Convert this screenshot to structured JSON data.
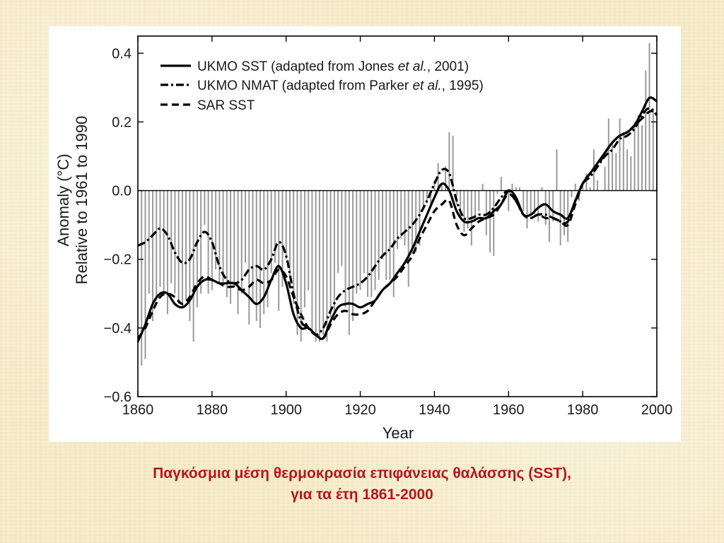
{
  "caption": {
    "line1": "Παγκόσμια μέση θερμοκρασία επιφάνειας θαλάσσης (SST),",
    "line2": "για τα έτη 1861-2000"
  },
  "chart_data": {
    "type": "bar",
    "xlabel": "Year",
    "ylabel_line1": "Anomaly (°C)",
    "ylabel_line2": "Relative to 1961 to 1990",
    "xlim": [
      1860,
      2000
    ],
    "ylim": [
      -0.6,
      0.45
    ],
    "xticks": [
      1860,
      1880,
      1900,
      1920,
      1940,
      1960,
      1980,
      2000
    ],
    "yticks": [
      0.4,
      0.2,
      0.0,
      -0.2,
      -0.4,
      -0.6
    ],
    "ytick_labels": [
      "0.4",
      "0.2",
      "0.0",
      "−0.2",
      "−0.4",
      "−0.6"
    ],
    "bar_color": "#9a9a9a",
    "line_color": "#000000",
    "legend": {
      "position": "top-left",
      "items": [
        {
          "style": "solid",
          "text_before": "UKMO SST (adapted from Jones ",
          "italic": "et al.",
          "text_after": ", 2001)"
        },
        {
          "style": "dashdot",
          "text_before": "UKMO NMAT (adapted from Parker ",
          "italic": "et al.",
          "text_after": ", 1995)"
        },
        {
          "style": "dashed",
          "text_before": "SAR SST",
          "italic": "",
          "text_after": ""
        }
      ]
    },
    "annual_bars": {
      "x": [
        1861,
        1862,
        1863,
        1864,
        1865,
        1866,
        1867,
        1868,
        1869,
        1870,
        1871,
        1872,
        1873,
        1874,
        1875,
        1876,
        1877,
        1878,
        1879,
        1880,
        1881,
        1882,
        1883,
        1884,
        1885,
        1886,
        1887,
        1888,
        1889,
        1890,
        1891,
        1892,
        1893,
        1894,
        1895,
        1896,
        1897,
        1898,
        1899,
        1900,
        1901,
        1902,
        1903,
        1904,
        1905,
        1906,
        1907,
        1908,
        1909,
        1910,
        1911,
        1912,
        1913,
        1914,
        1915,
        1916,
        1917,
        1918,
        1919,
        1920,
        1921,
        1922,
        1923,
        1924,
        1925,
        1926,
        1927,
        1928,
        1929,
        1930,
        1931,
        1932,
        1933,
        1934,
        1935,
        1936,
        1937,
        1938,
        1939,
        1940,
        1941,
        1942,
        1943,
        1944,
        1945,
        1946,
        1947,
        1948,
        1949,
        1950,
        1951,
        1952,
        1953,
        1954,
        1955,
        1956,
        1957,
        1958,
        1959,
        1960,
        1961,
        1962,
        1963,
        1964,
        1965,
        1966,
        1967,
        1968,
        1969,
        1970,
        1971,
        1972,
        1973,
        1974,
        1975,
        1976,
        1977,
        1978,
        1979,
        1980,
        1981,
        1982,
        1983,
        1984,
        1985,
        1986,
        1987,
        1988,
        1989,
        1990,
        1991,
        1992,
        1993,
        1994,
        1995,
        1996,
        1997,
        1998,
        1999,
        2000
      ],
      "values": [
        -0.51,
        -0.49,
        -0.3,
        -0.38,
        -0.32,
        -0.28,
        -0.3,
        -0.36,
        -0.27,
        -0.3,
        -0.33,
        -0.34,
        -0.32,
        -0.38,
        -0.44,
        -0.34,
        -0.3,
        -0.1,
        -0.3,
        -0.29,
        -0.23,
        -0.27,
        -0.28,
        -0.31,
        -0.33,
        -0.28,
        -0.36,
        -0.3,
        -0.21,
        -0.39,
        -0.32,
        -0.38,
        -0.4,
        -0.36,
        -0.34,
        -0.24,
        -0.21,
        -0.35,
        -0.28,
        -0.2,
        -0.25,
        -0.33,
        -0.42,
        -0.44,
        -0.34,
        -0.29,
        -0.41,
        -0.44,
        -0.44,
        -0.42,
        -0.44,
        -0.37,
        -0.36,
        -0.24,
        -0.22,
        -0.34,
        -0.42,
        -0.38,
        -0.3,
        -0.29,
        -0.24,
        -0.31,
        -0.31,
        -0.29,
        -0.26,
        -0.2,
        -0.26,
        -0.26,
        -0.31,
        -0.17,
        -0.14,
        -0.16,
        -0.28,
        -0.18,
        -0.18,
        -0.16,
        -0.05,
        -0.03,
        -0.04,
        0.03,
        0.08,
        0.02,
        0.07,
        0.17,
        0.16,
        -0.04,
        -0.08,
        -0.12,
        -0.11,
        -0.16,
        -0.09,
        -0.06,
        0.02,
        -0.13,
        -0.18,
        -0.19,
        -0.01,
        0.04,
        -0.02,
        -0.06,
        0.02,
        0.01,
        0.01,
        -0.06,
        -0.11,
        -0.07,
        -0.07,
        -0.09,
        0.01,
        -0.1,
        -0.15,
        -0.09,
        0.12,
        -0.16,
        -0.13,
        -0.15,
        -0.02,
        0.02,
        -0.03,
        0.02,
        0.05,
        0.01,
        0.12,
        0.03,
        0.0,
        0.07,
        0.21,
        0.14,
        0.11,
        0.21,
        0.17,
        0.12,
        0.1,
        0.2,
        0.22,
        0.19,
        0.35,
        0.43,
        0.24,
        0.2
      ]
    },
    "series": [
      {
        "name": "UKMO SST (adapted from Jones et al., 2001)",
        "style": "solid",
        "x": [
          1860,
          1862,
          1864,
          1866,
          1868,
          1870,
          1872,
          1874,
          1876,
          1878,
          1880,
          1882,
          1884,
          1886,
          1888,
          1890,
          1892,
          1894,
          1896,
          1898,
          1900,
          1902,
          1904,
          1906,
          1908,
          1910,
          1912,
          1914,
          1916,
          1918,
          1920,
          1922,
          1924,
          1926,
          1928,
          1930,
          1932,
          1934,
          1936,
          1938,
          1940,
          1942,
          1944,
          1946,
          1948,
          1950,
          1952,
          1954,
          1956,
          1958,
          1960,
          1962,
          1964,
          1966,
          1968,
          1970,
          1972,
          1974,
          1976,
          1978,
          1980,
          1982,
          1984,
          1986,
          1988,
          1990,
          1992,
          1994,
          1996,
          1998,
          2000
        ],
        "y": [
          -0.44,
          -0.39,
          -0.33,
          -0.3,
          -0.3,
          -0.33,
          -0.34,
          -0.32,
          -0.28,
          -0.26,
          -0.26,
          -0.27,
          -0.27,
          -0.27,
          -0.29,
          -0.31,
          -0.33,
          -0.31,
          -0.26,
          -0.22,
          -0.27,
          -0.36,
          -0.4,
          -0.4,
          -0.42,
          -0.43,
          -0.38,
          -0.34,
          -0.33,
          -0.33,
          -0.34,
          -0.33,
          -0.32,
          -0.29,
          -0.27,
          -0.24,
          -0.21,
          -0.17,
          -0.12,
          -0.07,
          -0.02,
          0.02,
          0.0,
          -0.06,
          -0.09,
          -0.09,
          -0.08,
          -0.08,
          -0.06,
          -0.04,
          0.0,
          -0.02,
          -0.07,
          -0.07,
          -0.05,
          -0.04,
          -0.06,
          -0.07,
          -0.08,
          -0.03,
          0.02,
          0.05,
          0.08,
          0.11,
          0.14,
          0.16,
          0.17,
          0.19,
          0.23,
          0.27,
          0.26
        ]
      },
      {
        "name": "UKMO NMAT (adapted from Parker et al., 1995)",
        "style": "dashdot",
        "x": [
          1860,
          1862,
          1864,
          1866,
          1868,
          1870,
          1872,
          1874,
          1876,
          1878,
          1880,
          1882,
          1884,
          1886,
          1888,
          1890,
          1892,
          1894,
          1896,
          1898,
          1900,
          1902,
          1904,
          1906,
          1908,
          1910,
          1912,
          1914,
          1916,
          1918,
          1920,
          1922,
          1924,
          1926,
          1928,
          1930,
          1932,
          1934,
          1936,
          1938,
          1940,
          1942,
          1944,
          1946,
          1948,
          1950,
          1952,
          1954,
          1956,
          1958,
          1960,
          1962,
          1964,
          1966,
          1968,
          1970,
          1972,
          1974,
          1976,
          1978,
          1980,
          1982,
          1984,
          1986,
          1988,
          1990,
          1992,
          1994,
          1996,
          1998,
          2000
        ],
        "y": [
          -0.16,
          -0.15,
          -0.13,
          -0.11,
          -0.13,
          -0.18,
          -0.21,
          -0.2,
          -0.15,
          -0.12,
          -0.15,
          -0.22,
          -0.26,
          -0.27,
          -0.26,
          -0.23,
          -0.22,
          -0.23,
          -0.2,
          -0.15,
          -0.19,
          -0.3,
          -0.38,
          -0.4,
          -0.42,
          -0.4,
          -0.35,
          -0.31,
          -0.29,
          -0.28,
          -0.27,
          -0.25,
          -0.22,
          -0.19,
          -0.17,
          -0.14,
          -0.12,
          -0.1,
          -0.07,
          -0.03,
          0.02,
          0.06,
          0.05,
          -0.03,
          -0.08,
          -0.08,
          -0.07,
          -0.07,
          -0.05,
          -0.02,
          0.0,
          -0.03,
          -0.07,
          -0.08,
          -0.07,
          -0.07,
          -0.08,
          -0.09,
          -0.09,
          -0.03,
          0.02,
          0.04,
          0.07,
          0.1,
          0.12,
          0.15,
          0.16,
          0.18,
          0.22,
          0.24,
          0.22
        ]
      },
      {
        "name": "SAR SST",
        "style": "dashed",
        "x": [
          1860,
          1862,
          1864,
          1866,
          1868,
          1870,
          1872,
          1874,
          1876,
          1878,
          1880,
          1882,
          1884,
          1886,
          1888,
          1890,
          1892,
          1894,
          1896,
          1898,
          1900,
          1902,
          1904,
          1906,
          1908,
          1910,
          1912,
          1914,
          1916,
          1918,
          1920,
          1922,
          1924,
          1926,
          1928,
          1930,
          1932,
          1934,
          1936,
          1938,
          1940,
          1942,
          1944,
          1946,
          1948,
          1950,
          1952,
          1954,
          1956,
          1958,
          1960,
          1962,
          1964,
          1966,
          1968,
          1970,
          1972,
          1974,
          1976,
          1978,
          1980,
          1982,
          1984,
          1986,
          1988,
          1990,
          1992,
          1994,
          1996,
          1998,
          2000
        ],
        "y": [
          -0.43,
          -0.4,
          -0.35,
          -0.31,
          -0.3,
          -0.31,
          -0.33,
          -0.31,
          -0.27,
          -0.25,
          -0.26,
          -0.27,
          -0.28,
          -0.28,
          -0.29,
          -0.28,
          -0.26,
          -0.27,
          -0.26,
          -0.23,
          -0.25,
          -0.31,
          -0.36,
          -0.4,
          -0.42,
          -0.43,
          -0.39,
          -0.36,
          -0.35,
          -0.36,
          -0.36,
          -0.35,
          -0.32,
          -0.29,
          -0.27,
          -0.25,
          -0.22,
          -0.19,
          -0.14,
          -0.1,
          -0.06,
          -0.04,
          -0.03,
          -0.1,
          -0.13,
          -0.11,
          -0.09,
          -0.08,
          -0.07,
          -0.04,
          -0.01,
          -0.03,
          -0.07,
          -0.08,
          -0.07,
          -0.08,
          -0.08,
          -0.09,
          -0.1,
          -0.04,
          0.02,
          0.05,
          0.07,
          0.11,
          0.14,
          0.16,
          0.17,
          0.19,
          0.21,
          0.23,
          0.23
        ]
      }
    ]
  }
}
